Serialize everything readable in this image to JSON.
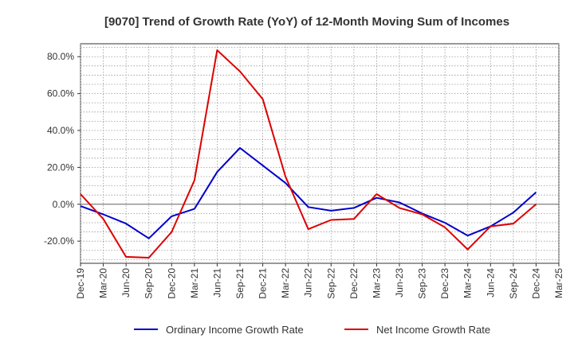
{
  "chart_data": {
    "type": "line",
    "title": "[9070]  Trend of Growth Rate (YoY) of 12-Month Moving Sum of Incomes",
    "xlabel": "",
    "ylabel": "",
    "x": [
      "Dec-19",
      "Mar-20",
      "Jun-20",
      "Sep-20",
      "Dec-20",
      "Mar-21",
      "Jun-21",
      "Sep-21",
      "Dec-21",
      "Mar-22",
      "Jun-22",
      "Sep-22",
      "Dec-22",
      "Mar-23",
      "Jun-23",
      "Sep-23",
      "Dec-23",
      "Mar-24",
      "Jun-24",
      "Sep-24",
      "Dec-24",
      "Mar-25"
    ],
    "ylim": [
      -32,
      87
    ],
    "yticks": [
      -20,
      0,
      20,
      40,
      60,
      80
    ],
    "ytick_labels": [
      "-20.0%",
      "0.0%",
      "20.0%",
      "40.0%",
      "60.0%",
      "80.0%"
    ],
    "grid": true,
    "legend_position": "bottom",
    "series": [
      {
        "name": "Ordinary Income Growth Rate",
        "color": "#0000cc",
        "values": [
          -1.0,
          -5.5,
          -10.5,
          -18.5,
          -6.5,
          -2.5,
          17.5,
          30.5,
          21.0,
          11.5,
          -1.5,
          -3.5,
          -2.0,
          3.5,
          1.0,
          -5.0,
          -10.0,
          -17.0,
          -12.0,
          -4.5,
          6.5,
          null
        ]
      },
      {
        "name": "Net Income Growth Rate",
        "color": "#dd0000",
        "values": [
          5.5,
          -8.0,
          -28.5,
          -29.0,
          -15.0,
          13.0,
          83.5,
          72.0,
          57.0,
          15.0,
          -13.5,
          -8.5,
          -8.0,
          5.5,
          -2.0,
          -5.5,
          -12.5,
          -24.5,
          -12.0,
          -10.5,
          0.0,
          null
        ]
      }
    ]
  }
}
